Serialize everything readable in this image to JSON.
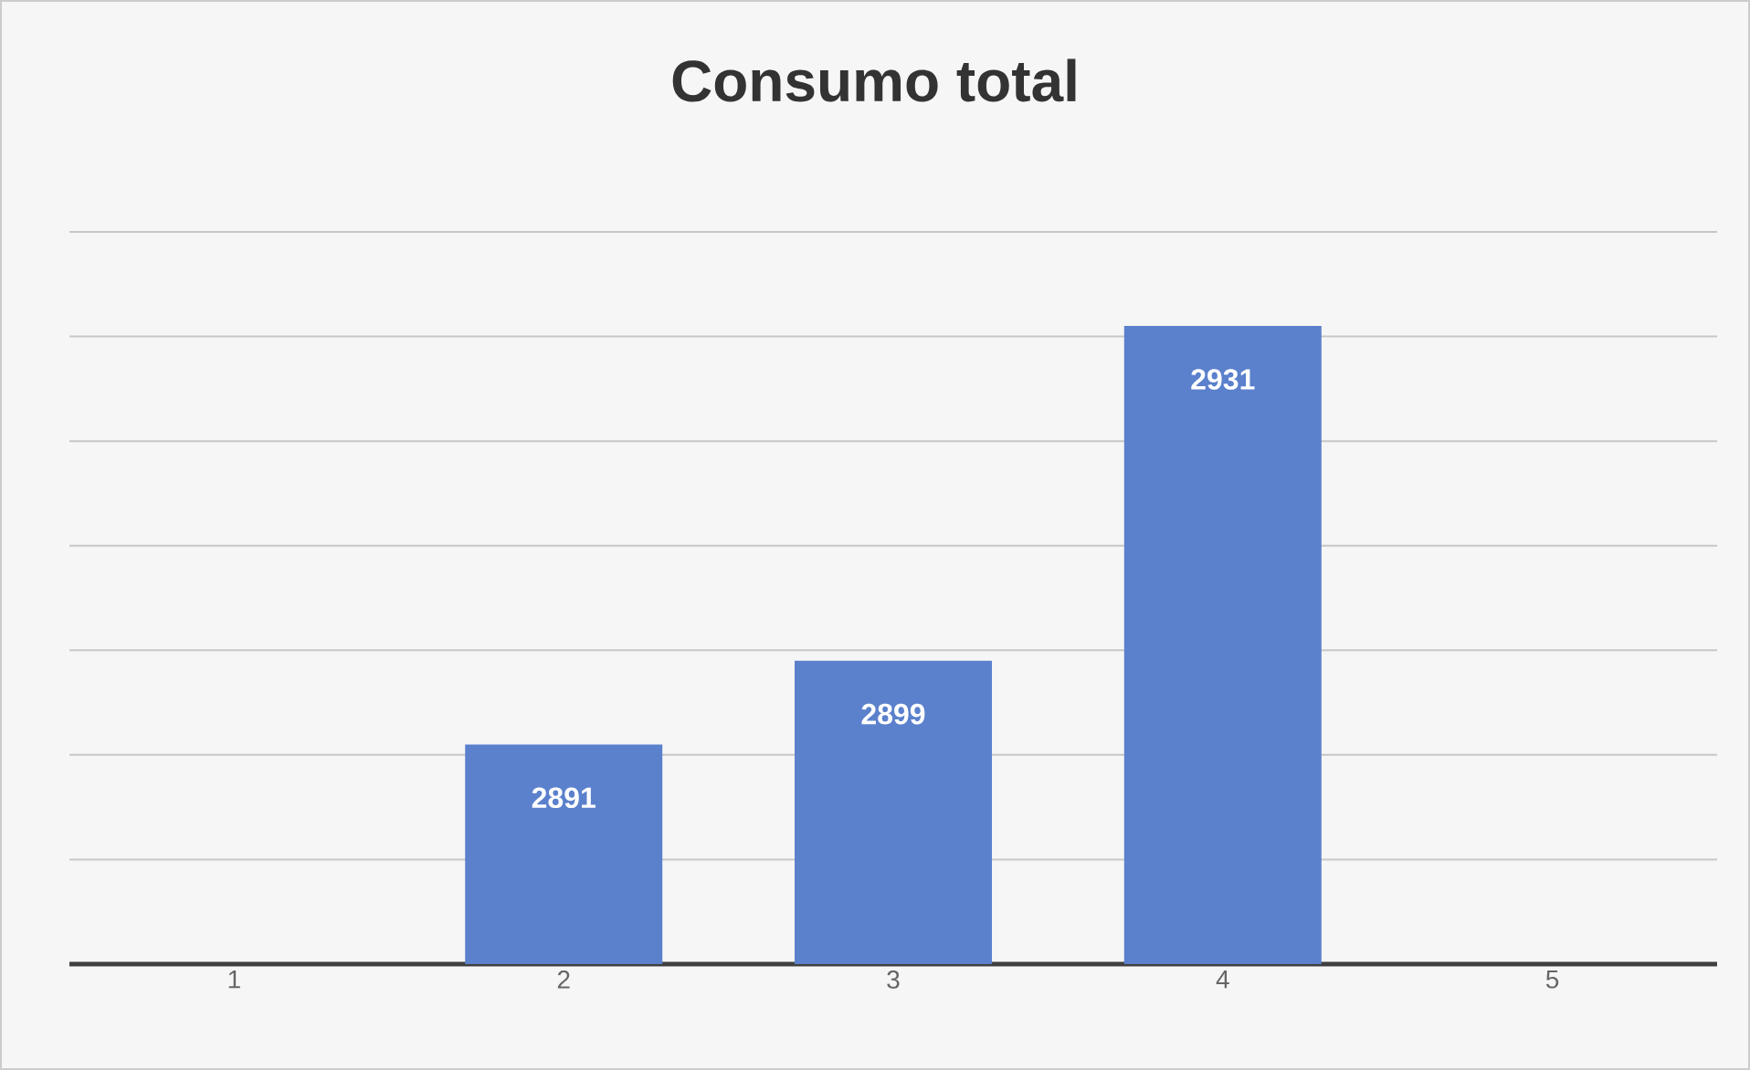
{
  "chart_data": {
    "type": "bar",
    "title": "Consumo total",
    "categories": [
      "1",
      "2",
      "3",
      "4",
      "5"
    ],
    "values": [
      null,
      2891,
      2899,
      2931,
      null
    ],
    "color": "#5b80cc",
    "ylim": [
      2870,
      2940
    ],
    "yticks": [
      {
        "value": 2870,
        "label": null
      },
      {
        "value": 2880,
        "label": null
      },
      {
        "value": 2890,
        "label": null
      },
      {
        "value": 2900,
        "label": null
      },
      {
        "value": 2910,
        "label": null
      },
      {
        "value": 2920,
        "label": null
      },
      {
        "value": 2930,
        "label": null
      },
      {
        "value": 2940,
        "label": null
      }
    ],
    "grid": "y",
    "data_labels": true,
    "tick_labels": "x"
  }
}
